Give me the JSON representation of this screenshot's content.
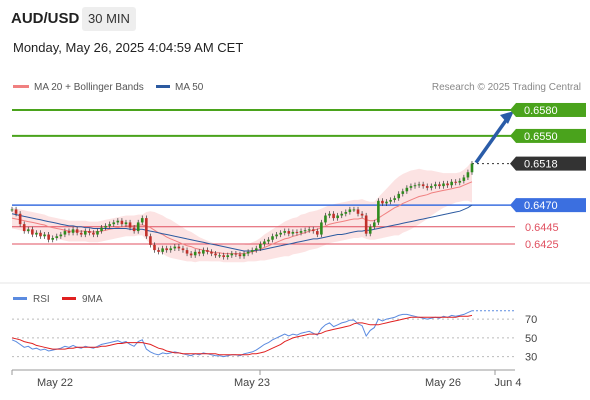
{
  "header": {
    "pair": "AUD/USD",
    "timeframe": "30 MIN",
    "datetime": "Monday, May 26, 2025 4:04:59 AM CET"
  },
  "legend": {
    "ma20": "MA 20 + Bollinger Bands",
    "ma50": "MA 50",
    "credit": "Research © 2025 Trading Central"
  },
  "colors": {
    "ma20": "#f08080",
    "ma50": "#2c5aa0",
    "target": "#4aa31c",
    "pivot": "#3b6fe0",
    "support": "#e05060",
    "rsi": "#5b8be0",
    "rsi_ma": "#e02020",
    "candle_up": "#2e8b1e",
    "candle_down": "#c0302a",
    "arrow": "#2a5ca8"
  },
  "chart_data": [
    {
      "type": "candlestick",
      "title": "AUD/USD 30 MIN",
      "ylim": [
        0.6395,
        0.6595
      ],
      "x_ticks": [
        "May 22",
        "May 23",
        "May 26",
        "Jun 4"
      ],
      "levels": [
        {
          "value": 0.658,
          "label": "0.6580",
          "kind": "target"
        },
        {
          "value": 0.655,
          "label": "0.6550",
          "kind": "target"
        },
        {
          "value": 0.6518,
          "label": "0.6518",
          "kind": "last"
        },
        {
          "value": 0.647,
          "label": "0.6470",
          "kind": "pivot"
        },
        {
          "value": 0.6445,
          "label": "0.6445",
          "kind": "support"
        },
        {
          "value": 0.6425,
          "label": "0.6425",
          "kind": "support"
        }
      ],
      "close": [
        0.6465,
        0.646,
        0.6448,
        0.644,
        0.6442,
        0.6436,
        0.6438,
        0.6434,
        0.6436,
        0.643,
        0.6432,
        0.6434,
        0.6436,
        0.644,
        0.6438,
        0.6442,
        0.6438,
        0.6436,
        0.644,
        0.6438,
        0.6436,
        0.644,
        0.6444,
        0.6446,
        0.6448,
        0.645,
        0.6452,
        0.6448,
        0.645,
        0.6444,
        0.644,
        0.645,
        0.6455,
        0.6434,
        0.6424,
        0.6418,
        0.6416,
        0.642,
        0.6418,
        0.642,
        0.6422,
        0.642,
        0.6418,
        0.6414,
        0.6412,
        0.6416,
        0.6414,
        0.6418,
        0.6416,
        0.6414,
        0.6412,
        0.6412,
        0.641,
        0.6412,
        0.6414,
        0.6413,
        0.6411,
        0.6414,
        0.6416,
        0.6418,
        0.642,
        0.6425,
        0.6428,
        0.643,
        0.6434,
        0.6436,
        0.6438,
        0.644,
        0.6437,
        0.6439,
        0.6438,
        0.644,
        0.6441,
        0.6442,
        0.644,
        0.6436,
        0.645,
        0.6458,
        0.646,
        0.6455,
        0.6458,
        0.646,
        0.6462,
        0.6465,
        0.6465,
        0.646,
        0.6458,
        0.6437,
        0.6445,
        0.645,
        0.6475,
        0.6472,
        0.6474,
        0.6476,
        0.6478,
        0.6483,
        0.6486,
        0.649,
        0.6492,
        0.6493,
        0.6494,
        0.6492,
        0.649,
        0.6492,
        0.6494,
        0.6492,
        0.6495,
        0.6493,
        0.6497,
        0.6496,
        0.6498,
        0.6502,
        0.6508,
        0.6518
      ],
      "ma20": [
        0.6455,
        0.6454,
        0.6453,
        0.6452,
        0.6451,
        0.645,
        0.6449,
        0.6448,
        0.6447,
        0.6445,
        0.6444,
        0.6443,
        0.6442,
        0.6441,
        0.644,
        0.644,
        0.644,
        0.644,
        0.644,
        0.6439,
        0.6439,
        0.6439,
        0.644,
        0.6441,
        0.6442,
        0.6443,
        0.6444,
        0.6445,
        0.6446,
        0.6446,
        0.6446,
        0.6447,
        0.6447,
        0.6446,
        0.6444,
        0.6441,
        0.6438,
        0.6436,
        0.6433,
        0.6431,
        0.6429,
        0.6427,
        0.6425,
        0.6423,
        0.6422,
        0.642,
        0.6419,
        0.6418,
        0.6417,
        0.6416,
        0.6415,
        0.6415,
        0.6414,
        0.6414,
        0.6414,
        0.6414,
        0.6414,
        0.6414,
        0.6415,
        0.6416,
        0.6417,
        0.6419,
        0.6421,
        0.6423,
        0.6425,
        0.6427,
        0.6429,
        0.6431,
        0.6432,
        0.6434,
        0.6435,
        0.6437,
        0.6438,
        0.644,
        0.6441,
        0.6442,
        0.6444,
        0.6446,
        0.6448,
        0.6449,
        0.645,
        0.6451,
        0.6452,
        0.6453,
        0.6454,
        0.6454,
        0.6455,
        0.6453,
        0.6452,
        0.6452,
        0.6455,
        0.6458,
        0.6461,
        0.6464,
        0.6467,
        0.6469,
        0.6472,
        0.6474,
        0.6476,
        0.6478,
        0.648,
        0.6481,
        0.6482,
        0.6484,
        0.6485,
        0.6486,
        0.6487,
        0.6488,
        0.6489,
        0.649,
        0.6491,
        0.6493,
        0.6495,
        0.6497
      ],
      "ma50": [
        0.646,
        0.6459,
        0.6458,
        0.6457,
        0.6456,
        0.6455,
        0.6454,
        0.6453,
        0.6452,
        0.6451,
        0.645,
        0.6449,
        0.6448,
        0.6447,
        0.6446,
        0.6446,
        0.6445,
        0.6445,
        0.6444,
        0.6444,
        0.6443,
        0.6443,
        0.6443,
        0.6443,
        0.6443,
        0.6443,
        0.6443,
        0.6443,
        0.6443,
        0.6442,
        0.6442,
        0.6442,
        0.6442,
        0.6441,
        0.644,
        0.6439,
        0.6438,
        0.6437,
        0.6436,
        0.6435,
        0.6434,
        0.6433,
        0.6432,
        0.6431,
        0.643,
        0.6429,
        0.6428,
        0.6427,
        0.6426,
        0.6425,
        0.6424,
        0.6423,
        0.6422,
        0.6421,
        0.642,
        0.6419,
        0.6418,
        0.6417,
        0.6417,
        0.6417,
        0.6418,
        0.6418,
        0.6419,
        0.642,
        0.6421,
        0.6422,
        0.6423,
        0.6424,
        0.6425,
        0.6426,
        0.6427,
        0.6428,
        0.6429,
        0.643,
        0.6431,
        0.6431,
        0.6432,
        0.6433,
        0.6434,
        0.6435,
        0.6436,
        0.6436,
        0.6437,
        0.6438,
        0.6439,
        0.644,
        0.644,
        0.6441,
        0.6441,
        0.6442,
        0.6443,
        0.6444,
        0.6445,
        0.6446,
        0.6447,
        0.6448,
        0.6449,
        0.645,
        0.6451,
        0.6452,
        0.6453,
        0.6454,
        0.6455,
        0.6456,
        0.6457,
        0.6458,
        0.6459,
        0.646,
        0.6461,
        0.6462,
        0.6463,
        0.6465,
        0.6467,
        0.647
      ],
      "band_width": [
        0.0012,
        0.0012,
        0.0012,
        0.0012,
        0.0012,
        0.0012,
        0.0012,
        0.0012,
        0.0012,
        0.0012,
        0.0012,
        0.0012,
        0.0012,
        0.0012,
        0.0012,
        0.0012,
        0.0012,
        0.0012,
        0.0012,
        0.0012,
        0.0012,
        0.0012,
        0.0012,
        0.0012,
        0.0012,
        0.0012,
        0.0012,
        0.0012,
        0.0012,
        0.0012,
        0.0012,
        0.0012,
        0.0012,
        0.0016,
        0.0019,
        0.0021,
        0.0022,
        0.0022,
        0.0022,
        0.0022,
        0.0021,
        0.002,
        0.0019,
        0.0018,
        0.0017,
        0.0016,
        0.0014,
        0.0013,
        0.0012,
        0.0011,
        0.001,
        0.001,
        0.001,
        0.001,
        0.001,
        0.001,
        0.001,
        0.001,
        0.001,
        0.0011,
        0.0012,
        0.0013,
        0.0015,
        0.0016,
        0.0017,
        0.0018,
        0.0019,
        0.002,
        0.0021,
        0.0021,
        0.0021,
        0.0022,
        0.0022,
        0.0022,
        0.0022,
        0.0022,
        0.0022,
        0.0022,
        0.0022,
        0.0022,
        0.0022,
        0.0022,
        0.0022,
        0.0022,
        0.0022,
        0.0022,
        0.0022,
        0.0022,
        0.0022,
        0.0022,
        0.0024,
        0.0026,
        0.0028,
        0.003,
        0.0032,
        0.0034,
        0.0034,
        0.0034,
        0.0034,
        0.0033,
        0.0032,
        0.003,
        0.0028,
        0.0026,
        0.0024,
        0.0022,
        0.002,
        0.0019,
        0.0018,
        0.0017,
        0.0017,
        0.0018,
        0.002,
        0.0024
      ],
      "forecast": [
        0.6518,
        0.658
      ]
    },
    {
      "type": "line",
      "series": [
        {
          "name": "RSI",
          "values": [
            48,
            46,
            43,
            40,
            41,
            38,
            39,
            37,
            38,
            36,
            37,
            38,
            39,
            41,
            40,
            42,
            40,
            39,
            41,
            40,
            39,
            41,
            43,
            44,
            45,
            46,
            47,
            45,
            46,
            43,
            41,
            46,
            48,
            38,
            35,
            33,
            32,
            34,
            33,
            34,
            35,
            34,
            33,
            32,
            31,
            33,
            32,
            34,
            33,
            32,
            31,
            31,
            30,
            31,
            32,
            32,
            31,
            33,
            34,
            35,
            37,
            40,
            43,
            45,
            48,
            50,
            52,
            54,
            52,
            54,
            53,
            55,
            56,
            57,
            55,
            53,
            60,
            64,
            66,
            62,
            64,
            66,
            67,
            69,
            69,
            65,
            63,
            52,
            58,
            61,
            70,
            68,
            70,
            71,
            72,
            74,
            75,
            75,
            74,
            73,
            72,
            71,
            70,
            71,
            72,
            71,
            73,
            72,
            74,
            73,
            74,
            75,
            77,
            79
          ]
        },
        {
          "name": "9MA",
          "values": [
            50,
            49,
            48,
            46,
            45,
            44,
            42,
            41,
            40,
            39,
            38,
            38,
            38,
            38,
            39,
            39,
            40,
            40,
            40,
            40,
            40,
            40,
            41,
            41,
            42,
            43,
            44,
            44,
            45,
            45,
            45,
            45,
            45,
            44,
            43,
            41,
            39,
            38,
            36,
            35,
            34,
            34,
            33,
            33,
            33,
            33,
            33,
            33,
            33,
            33,
            33,
            32,
            32,
            32,
            32,
            32,
            32,
            32,
            32,
            33,
            33,
            34,
            35,
            37,
            39,
            41,
            43,
            46,
            48,
            50,
            51,
            52,
            53,
            54,
            54,
            54,
            55,
            57,
            58,
            59,
            60,
            61,
            62,
            63,
            65,
            66,
            66,
            65,
            64,
            64,
            64,
            65,
            66,
            67,
            68,
            69,
            70,
            71,
            72,
            72,
            72,
            72,
            72,
            72,
            72,
            72,
            72,
            72,
            72,
            72,
            73,
            73,
            73,
            74
          ]
        }
      ],
      "y_ticks": [
        "70",
        "50",
        "30"
      ],
      "ylim": [
        20,
        84
      ],
      "levels": [
        70,
        50,
        30
      ]
    }
  ]
}
